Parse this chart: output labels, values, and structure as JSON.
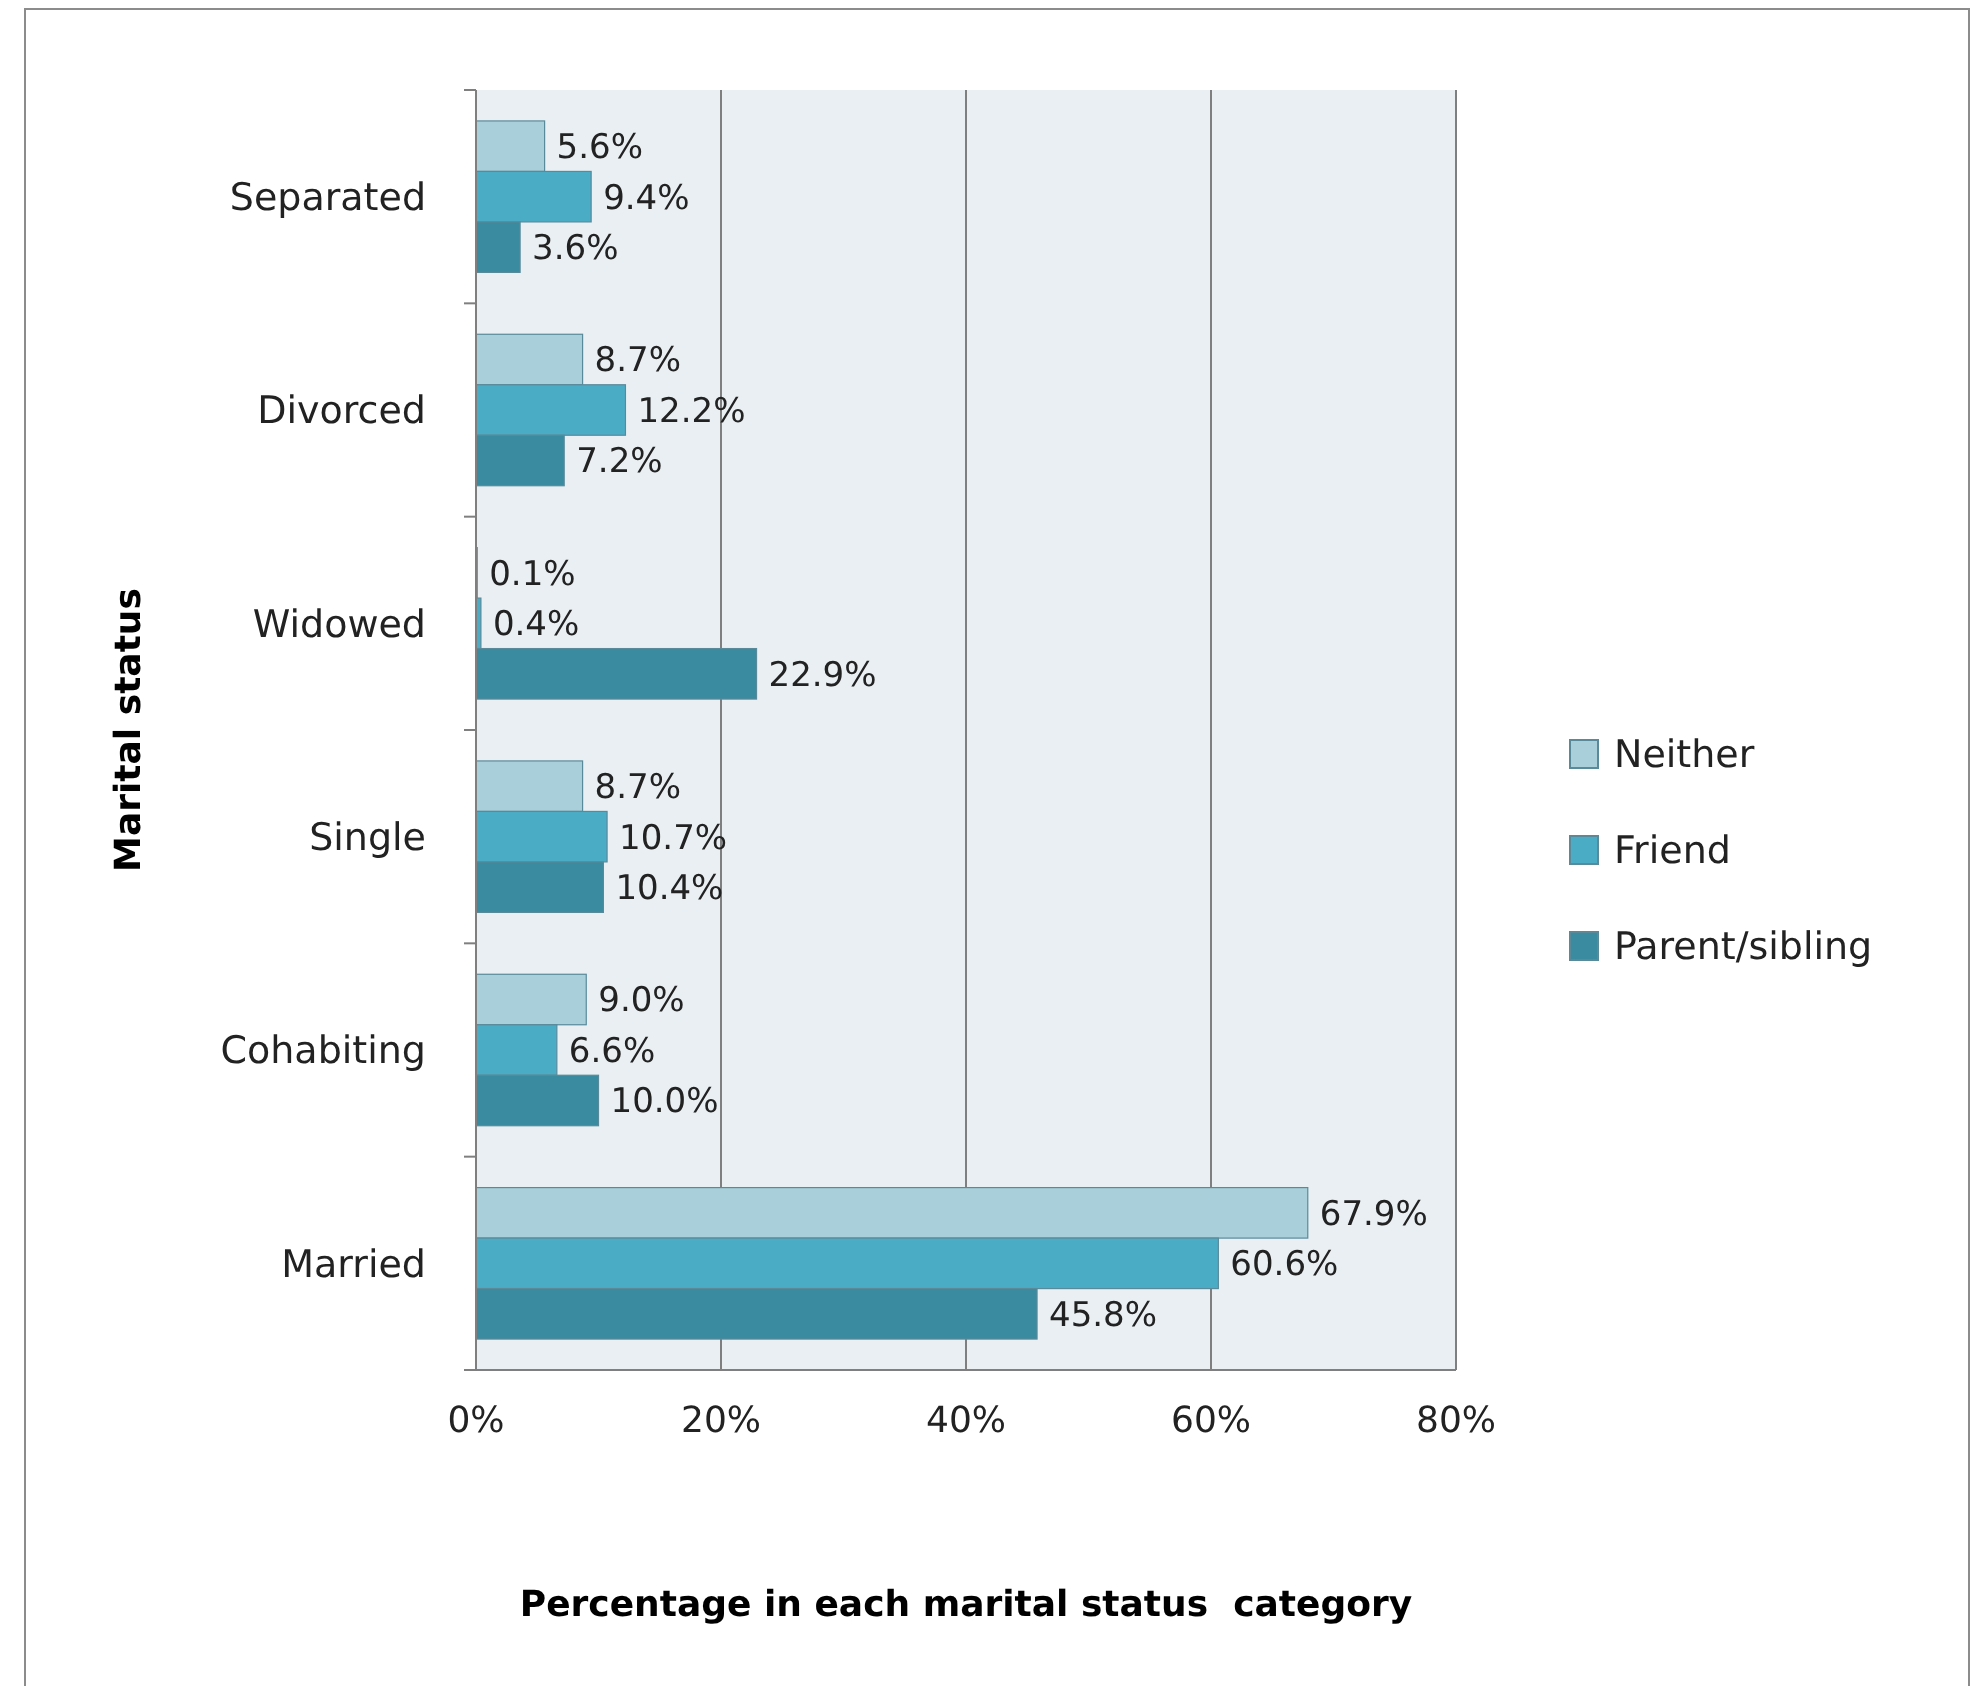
{
  "chart_data": {
    "type": "bar",
    "orientation": "horizontal",
    "xlabel": "Percentage in each marital status  category",
    "ylabel": "Marital status",
    "categories": [
      "Separated",
      "Divorced",
      "Widowed",
      "Single",
      "Cohabiting",
      "Married"
    ],
    "series": [
      {
        "name": "Neither",
        "color": "#a9d0da",
        "values": [
          5.6,
          8.7,
          0.1,
          8.7,
          9.0,
          67.9
        ],
        "value_labels": [
          "5.6%",
          "8.7%",
          "0.1%",
          "8.7%",
          "9.0%",
          "67.9%"
        ]
      },
      {
        "name": "Friend",
        "color": "#4bacc6",
        "values": [
          9.4,
          12.2,
          0.4,
          10.7,
          6.6,
          60.6
        ],
        "value_labels": [
          "9.4%",
          "12.2%",
          "0.4%",
          "10.7%",
          "6.6%",
          "60.6%"
        ]
      },
      {
        "name": "Parent/sibling",
        "color": "#3a8aa0",
        "values": [
          3.6,
          7.2,
          22.9,
          10.4,
          10.0,
          45.8
        ],
        "value_labels": [
          "3.6%",
          "7.2%",
          "22.9%",
          "10.4%",
          "10.0%",
          "45.8%"
        ]
      }
    ],
    "xlim": [
      0,
      80
    ],
    "xticks": [
      {
        "value": 0,
        "label": "0%"
      },
      {
        "value": 20,
        "label": "20%"
      },
      {
        "value": 40,
        "label": "40%"
      },
      {
        "value": 60,
        "label": "60%"
      },
      {
        "value": 80,
        "label": "80%"
      }
    ],
    "grid": "x",
    "legend": "right"
  }
}
